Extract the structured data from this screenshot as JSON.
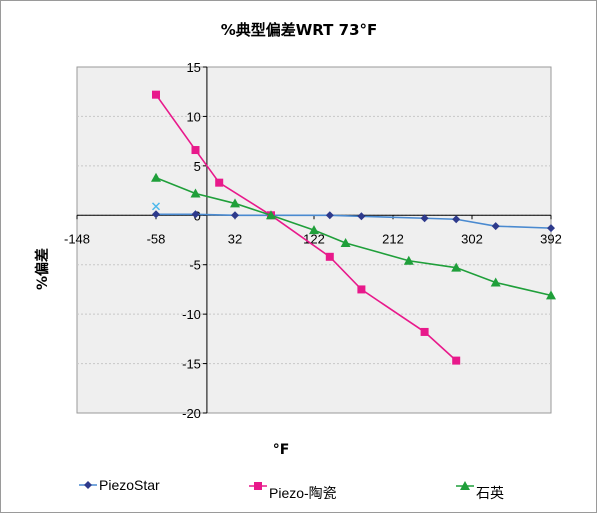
{
  "chart_data": {
    "type": "line",
    "title": "%典型偏差WRT  73°F",
    "xlabel": "°F",
    "ylabel": "%偏差",
    "xlim": [
      -148,
      392
    ],
    "ylim": [
      -20,
      15
    ],
    "xticks": [
      "-148",
      "-58",
      "32",
      "122",
      "212",
      "302",
      "392"
    ],
    "yticks": [
      "15",
      "10",
      "5",
      "0",
      "-5",
      "-10",
      "-15",
      "-20"
    ],
    "grid": true,
    "legend_position": "bottom",
    "series": [
      {
        "name": "PiezoStar",
        "color": "#2e3a8c",
        "marker": "diamond",
        "x": [
          -58,
          -13,
          32,
          73,
          140,
          176,
          248,
          284,
          329,
          392
        ],
        "y": [
          0.1,
          0.1,
          0.0,
          0.0,
          0.0,
          -0.1,
          -0.3,
          -0.4,
          -1.1,
          -1.3
        ]
      },
      {
        "name": "Piezo-陶瓷",
        "color": "#e8198b",
        "marker": "square",
        "x": [
          -58,
          -13,
          14,
          73,
          140,
          176,
          248,
          284
        ],
        "y": [
          12.2,
          6.6,
          3.3,
          0.0,
          -4.2,
          -7.5,
          -11.8,
          -14.7
        ]
      },
      {
        "name": "石英",
        "color": "#1f9f3a",
        "marker": "triangle",
        "x": [
          -58,
          -13,
          32,
          73,
          122,
          158,
          230,
          284,
          329,
          392
        ],
        "y": [
          3.8,
          2.2,
          1.2,
          0.0,
          -1.5,
          -2.8,
          -4.6,
          -5.3,
          -6.8,
          -8.1
        ]
      }
    ],
    "extra_marker": {
      "x": -58,
      "y": 0.9,
      "color": "#4db8ec"
    }
  }
}
